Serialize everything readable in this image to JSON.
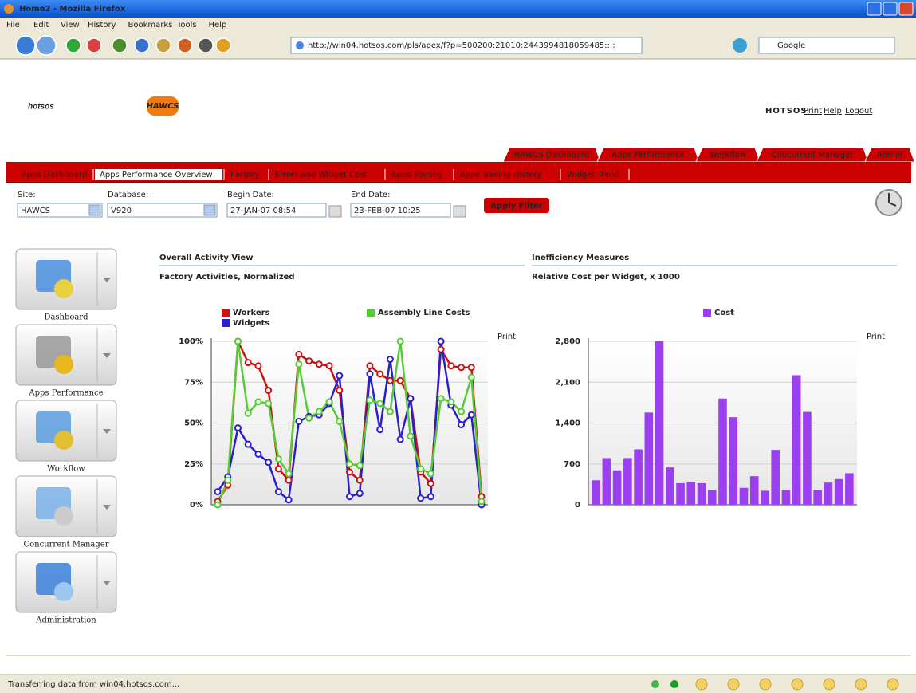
{
  "window": {
    "title": "Home2 - Mozilla Firefox"
  },
  "menu": [
    "File",
    "Edit",
    "View",
    "History",
    "Bookmarks",
    "Tools",
    "Help"
  ],
  "toolbar": {
    "url": "http://win04.hotsos.com/pls/apex/f?p=500200:21010:2443994818059485::::",
    "search": "Google"
  },
  "header": {
    "logo": "hotsos",
    "badge": "HAWCS",
    "brand": "HOTSOS",
    "links": [
      "Print",
      "Help",
      "Logout"
    ]
  },
  "tabs": [
    "HAWCS Dashboard",
    "Apps Performance",
    "Workflow",
    "Concurrent Manager",
    "Admin"
  ],
  "subtabs": [
    "Apps Dashboard",
    "Apps Performance Overview",
    "Factory",
    "Errors and Widget Cost",
    "Apps Tracing",
    "Apps Tracing History",
    "Widget Trend"
  ],
  "filters": [
    {
      "label": "Site:",
      "value": "HAWCS"
    },
    {
      "label": "Database:",
      "value": "V920"
    },
    {
      "label": "Begin Date:",
      "value": "27-JAN-07 08:54"
    },
    {
      "label": "End Date:",
      "value": "23-FEB-07 10:25"
    }
  ],
  "apply_button": "Apply Filter",
  "sidebar": [
    "Dashboard",
    "Apps Performance",
    "Workflow",
    "Concurrent Manager",
    "Administration"
  ],
  "status": "Transferring data from win04.hotsos.com...",
  "chart_data": [
    {
      "type": "line",
      "title": "Overall Activity View",
      "subtitle": "Factory Activities, Normalized",
      "print_label": "Print",
      "categories": [
        null,
        null,
        null,
        null,
        null,
        null,
        null,
        null,
        null,
        null,
        null,
        null,
        null,
        null,
        null,
        null,
        null,
        null,
        null,
        null,
        null,
        null,
        null,
        null,
        null,
        null,
        null
      ],
      "series": [
        {
          "name": "Workers",
          "color": "#cc1111",
          "values": [
            2,
            12,
            100,
            87,
            85,
            70,
            22,
            15,
            92,
            88,
            86,
            85,
            70,
            20,
            15,
            85,
            80,
            76,
            76,
            65,
            20,
            13,
            95,
            85,
            84,
            84,
            5
          ]
        },
        {
          "name": "Widgets",
          "color": "#2a1fcc",
          "values": [
            8,
            17,
            47,
            37,
            31,
            26,
            8,
            3,
            51,
            54,
            55,
            62,
            79,
            5,
            7,
            80,
            46,
            89,
            40,
            65,
            4,
            5,
            100,
            61,
            49,
            55,
            0
          ]
        },
        {
          "name": "Assembly Line Costs",
          "color": "#55cc33",
          "values": [
            0,
            15,
            100,
            56,
            63,
            62,
            28,
            19,
            86,
            53,
            57,
            63,
            51,
            25,
            24,
            64,
            62,
            57,
            100,
            42,
            22,
            19,
            65,
            63,
            57,
            78,
            2
          ]
        }
      ],
      "ylim": [
        0,
        100
      ],
      "yticks": [
        {
          "value": 0,
          "label": "0%"
        },
        {
          "value": 25,
          "label": "25%"
        },
        {
          "value": 50,
          "label": "50%"
        },
        {
          "value": 75,
          "label": "75%"
        },
        {
          "value": 100,
          "label": "100%"
        }
      ],
      "grid": true
    },
    {
      "type": "bar",
      "title": "Inefficiency Measures",
      "subtitle": "Relative Cost per Widget, x 1000",
      "print_label": "Print",
      "categories": [
        null,
        null,
        null,
        null,
        null,
        null,
        null,
        null,
        null,
        null,
        null,
        null,
        null,
        null,
        null,
        null,
        null,
        null,
        null,
        null,
        null,
        null,
        null,
        null,
        null
      ],
      "series": [
        {
          "name": "Cost",
          "color": "#9b3ff0",
          "values": [
            420,
            800,
            590,
            800,
            950,
            1580,
            2800,
            640,
            370,
            390,
            370,
            250,
            1820,
            1500,
            290,
            490,
            240,
            940,
            250,
            2220,
            1590,
            250,
            380,
            440,
            540
          ]
        }
      ],
      "ylim": [
        0,
        2800
      ],
      "yticks": [
        0,
        700,
        {
          "value": 1400,
          "label": "1,400"
        },
        {
          "value": 2100,
          "label": "2,100"
        },
        {
          "value": 2800,
          "label": "2,800"
        }
      ],
      "grid": true
    }
  ]
}
